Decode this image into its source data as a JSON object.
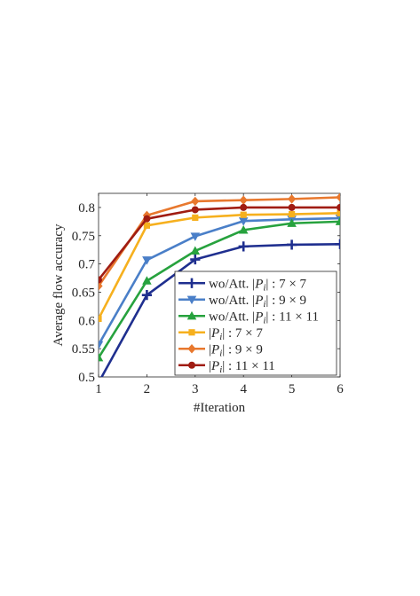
{
  "chart_data": {
    "type": "line",
    "xlabel": "#Iteration",
    "ylabel": "Average flow accuracy",
    "x": [
      1,
      2,
      3,
      4,
      5,
      6
    ],
    "xlim": [
      1,
      6
    ],
    "ylim": [
      0.5,
      0.825
    ],
    "xticks": [
      "1",
      "2",
      "3",
      "4",
      "5",
      "6"
    ],
    "yticks": [
      {
        "value": 0.5,
        "label": "0.5"
      },
      {
        "value": 0.55,
        "label": "0.55"
      },
      {
        "value": 0.6,
        "label": "0.6"
      },
      {
        "value": 0.65,
        "label": "0.65"
      },
      {
        "value": 0.7,
        "label": "0.7"
      },
      {
        "value": 0.75,
        "label": "0.75"
      },
      {
        "value": 0.8,
        "label": "0.8"
      }
    ],
    "grid": false,
    "legend_position": "bottom-right",
    "series": [
      {
        "prefix": "wo/Att. ",
        "size": "7 × 7",
        "color": "#1f2f8f",
        "marker": "plus",
        "values": [
          0.49,
          0.645,
          0.708,
          0.731,
          0.734,
          0.735
        ]
      },
      {
        "prefix": "wo/Att. ",
        "size": "9 × 9",
        "color": "#4a7fc8",
        "marker": "triangle-down",
        "values": [
          0.557,
          0.707,
          0.749,
          0.776,
          0.779,
          0.781
        ]
      },
      {
        "prefix": "wo/Att. ",
        "size": "11 × 11",
        "color": "#27a23e",
        "marker": "triangle-up",
        "values": [
          0.534,
          0.67,
          0.723,
          0.76,
          0.772,
          0.775
        ]
      },
      {
        "prefix": "",
        "size": "7 × 7",
        "color": "#f6b01e",
        "marker": "square",
        "values": [
          0.603,
          0.768,
          0.782,
          0.787,
          0.788,
          0.79
        ]
      },
      {
        "prefix": "",
        "size": "9 × 9",
        "color": "#e8782e",
        "marker": "diamond",
        "values": [
          0.661,
          0.786,
          0.811,
          0.813,
          0.815,
          0.818
        ]
      },
      {
        "prefix": "",
        "size": "11 × 11",
        "color": "#a01c12",
        "marker": "circle",
        "values": [
          0.672,
          0.78,
          0.796,
          0.8,
          0.8,
          0.8
        ]
      }
    ]
  }
}
